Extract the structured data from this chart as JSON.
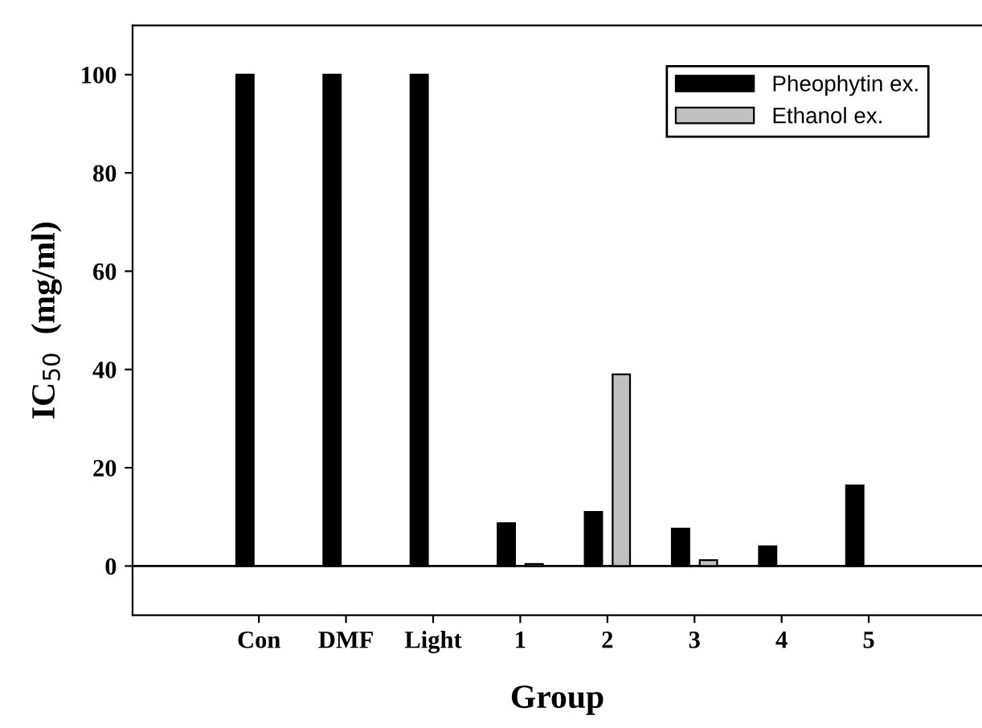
{
  "chart_data": {
    "type": "bar",
    "xlabel": "Group",
    "ylabel": "IC$_{50}$  (mg/ml)",
    "categories": [
      "Con",
      "DMF",
      "Light",
      "1",
      "2",
      "3",
      "4",
      "5"
    ],
    "series": [
      {
        "name": "Pheophytin ex.",
        "color": "#000000",
        "values": [
          100,
          100,
          100,
          8.7,
          11,
          7.6,
          4,
          16.4
        ]
      },
      {
        "name": "Ethanol ex.",
        "color": "#c0c0c0",
        "values": [
          null,
          null,
          null,
          0.4,
          39,
          1.2,
          null,
          null
        ]
      }
    ],
    "ylim": [
      -10,
      110
    ],
    "yticks": [
      0,
      20,
      40,
      60,
      80,
      100
    ],
    "ref_lines": [
      {
        "axis": "y",
        "value": 0,
        "color": "#000000"
      }
    ],
    "legend": "top right",
    "grid": false
  }
}
